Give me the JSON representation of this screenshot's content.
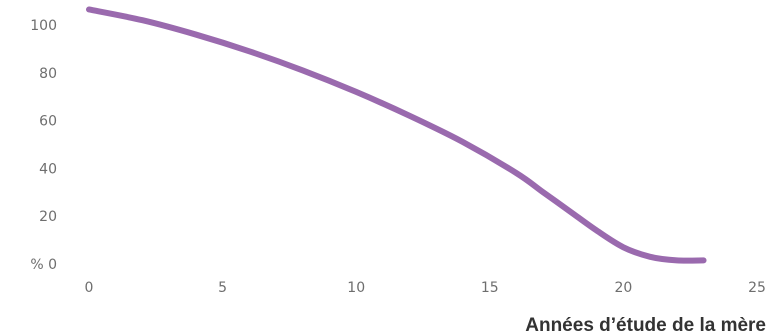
{
  "chart_data": {
    "type": "line",
    "xlabel": "Années d’étude de la mère",
    "ylabel": "",
    "xlim": [
      0,
      25
    ],
    "ylim": [
      0,
      100
    ],
    "x_ticks": [
      0,
      5,
      10,
      15,
      20,
      25
    ],
    "x_tick_labels": [
      "0",
      "5",
      "10",
      "15",
      "20",
      "25"
    ],
    "y_ticks": [
      0,
      20,
      40,
      60,
      80,
      100
    ],
    "y_tick_labels": [
      "% 0",
      "20",
      "40",
      "60",
      "80",
      "100"
    ],
    "grid": false,
    "series": [
      {
        "color": "#9a6aae",
        "x": [
          0,
          2,
          4,
          6,
          8,
          10,
          12,
          14,
          16,
          17,
          18,
          19,
          20,
          21,
          22,
          23
        ],
        "y": [
          106.5,
          102,
          96,
          89,
          81,
          72,
          62,
          51,
          38,
          30,
          22,
          14,
          7,
          3,
          1.5,
          1.5
        ]
      }
    ]
  }
}
